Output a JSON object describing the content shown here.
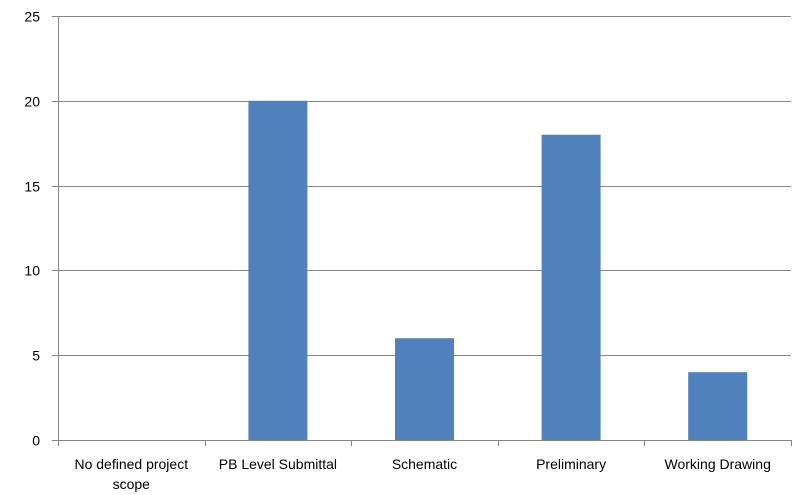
{
  "chart_data": {
    "type": "bar",
    "categories": [
      "No defined project scope",
      "PB Level Submittal",
      "Schematic",
      "Preliminary",
      "Working Drawing"
    ],
    "category_lines": [
      [
        "No defined project",
        "scope"
      ],
      [
        "PB Level Submittal"
      ],
      [
        "Schematic"
      ],
      [
        "Preliminary"
      ],
      [
        "Working Drawing"
      ]
    ],
    "values": [
      0,
      20,
      6,
      18,
      4
    ],
    "ylim": [
      0,
      25
    ],
    "yticks": [
      0,
      5,
      10,
      15,
      20,
      25
    ],
    "title": "",
    "xlabel": "",
    "ylabel": "",
    "grid": true,
    "legend": "none",
    "colors": {
      "bar": "#4f81bd",
      "grid": "#868686",
      "axis": "#868686",
      "text": "#000000"
    }
  }
}
